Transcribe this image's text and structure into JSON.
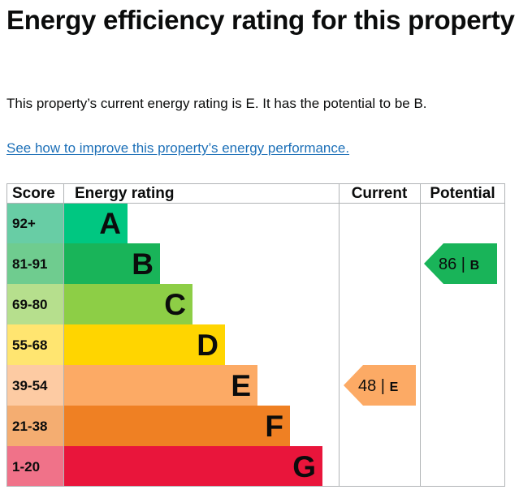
{
  "page": {
    "title": "Energy efficiency rating for this property",
    "summary": "This property’s current energy rating is E. It has the potential to be B.",
    "link_text": "See how to improve this property’s energy performance."
  },
  "chart_data": {
    "type": "bar",
    "headers": {
      "score": "Score",
      "rating": "Energy rating",
      "current": "Current",
      "potential": "Potential"
    },
    "bands": [
      {
        "band": "A",
        "score": "92+",
        "bar_color": "#00c781",
        "score_color": "#68cda5"
      },
      {
        "band": "B",
        "score": "81-91",
        "bar_color": "#19b459",
        "score_color": "#6fcc8f"
      },
      {
        "band": "C",
        "score": "69-80",
        "bar_color": "#8dce46",
        "score_color": "#b6df8d"
      },
      {
        "band": "D",
        "score": "55-68",
        "bar_color": "#ffd500",
        "score_color": "#ffe570"
      },
      {
        "band": "E",
        "score": "39-54",
        "bar_color": "#fcaa65",
        "score_color": "#fdcba3"
      },
      {
        "band": "F",
        "score": "21-38",
        "bar_color": "#ef8023",
        "score_color": "#f4ad71"
      },
      {
        "band": "G",
        "score": "1-20",
        "bar_color": "#e9153b",
        "score_color": "#f07289"
      }
    ],
    "current": {
      "value": 48,
      "band": "E",
      "color": "#fcaa65",
      "label": "48 |",
      "band_label": "E"
    },
    "potential": {
      "value": 86,
      "band": "B",
      "color": "#19b459",
      "label": "86 |",
      "band_label": "B"
    }
  }
}
